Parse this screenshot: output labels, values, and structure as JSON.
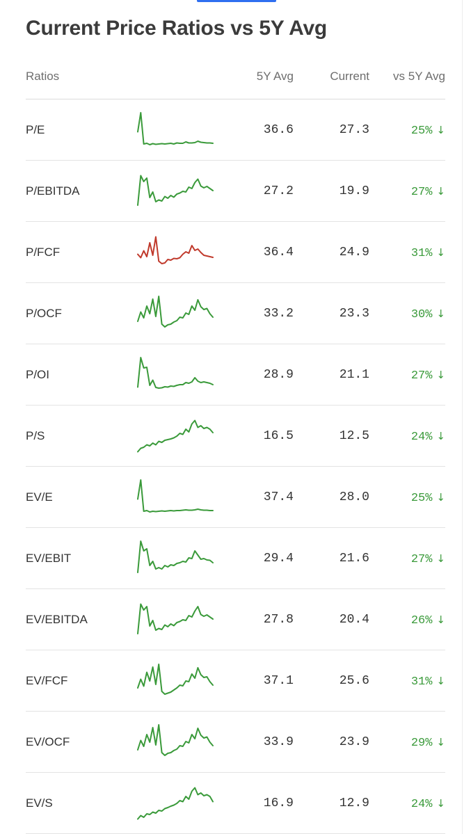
{
  "title": "Current Price Ratios vs 5Y Avg",
  "columns": {
    "ratios": "Ratios",
    "avg": "5Y Avg",
    "current": "Current",
    "vs": "vs 5Y Avg"
  },
  "colors": {
    "positive": "#3a9a3a",
    "negative": "#c0392b"
  },
  "icons": {
    "down_arrow": "↓"
  },
  "rows": [
    {
      "name": "P/E",
      "avg": "36.6",
      "current": "27.3",
      "vs": "25%",
      "spark_color": "#3a9a3a",
      "spark": [
        0.45,
        1.0,
        0.1,
        0.12,
        0.08,
        0.11,
        0.09,
        0.1,
        0.11,
        0.1,
        0.11,
        0.12,
        0.1,
        0.13,
        0.12,
        0.12,
        0.16,
        0.13,
        0.13,
        0.14,
        0.18,
        0.15,
        0.14,
        0.13,
        0.13,
        0.12
      ]
    },
    {
      "name": "P/EBITDA",
      "avg": "27.2",
      "current": "19.9",
      "vs": "27%",
      "spark_color": "#3a9a3a",
      "spark": [
        0.1,
        0.95,
        0.78,
        0.88,
        0.32,
        0.48,
        0.2,
        0.25,
        0.22,
        0.35,
        0.3,
        0.38,
        0.33,
        0.42,
        0.45,
        0.5,
        0.48,
        0.62,
        0.58,
        0.75,
        0.85,
        0.65,
        0.6,
        0.64,
        0.58,
        0.52
      ]
    },
    {
      "name": "P/FCF",
      "avg": "36.4",
      "current": "24.9",
      "vs": "31%",
      "spark_color": "#c0392b",
      "spark": [
        0.45,
        0.35,
        0.55,
        0.38,
        0.78,
        0.42,
        0.95,
        0.25,
        0.18,
        0.2,
        0.3,
        0.28,
        0.33,
        0.32,
        0.35,
        0.45,
        0.52,
        0.48,
        0.7,
        0.56,
        0.6,
        0.5,
        0.42,
        0.4,
        0.38,
        0.36
      ]
    },
    {
      "name": "P/OCF",
      "avg": "33.2",
      "current": "23.3",
      "vs": "30%",
      "spark_color": "#3a9a3a",
      "spark": [
        0.28,
        0.55,
        0.38,
        0.72,
        0.5,
        0.92,
        0.42,
        1.0,
        0.2,
        0.12,
        0.18,
        0.2,
        0.26,
        0.3,
        0.4,
        0.38,
        0.52,
        0.48,
        0.72,
        0.6,
        0.9,
        0.7,
        0.62,
        0.65,
        0.5,
        0.4
      ]
    },
    {
      "name": "P/OI",
      "avg": "28.9",
      "current": "21.1",
      "vs": "27%",
      "spark_color": "#3a9a3a",
      "spark": [
        0.15,
        1.0,
        0.7,
        0.72,
        0.2,
        0.35,
        0.14,
        0.12,
        0.13,
        0.16,
        0.15,
        0.18,
        0.17,
        0.2,
        0.22,
        0.22,
        0.28,
        0.26,
        0.3,
        0.42,
        0.32,
        0.28,
        0.3,
        0.28,
        0.26,
        0.22
      ]
    },
    {
      "name": "P/S",
      "avg": "16.5",
      "current": "12.5",
      "vs": "24%",
      "spark_color": "#3a9a3a",
      "spark": [
        0.05,
        0.15,
        0.18,
        0.25,
        0.22,
        0.3,
        0.25,
        0.35,
        0.32,
        0.38,
        0.4,
        0.42,
        0.45,
        0.5,
        0.58,
        0.55,
        0.7,
        0.62,
        0.85,
        0.95,
        0.75,
        0.8,
        0.72,
        0.75,
        0.7,
        0.6
      ]
    },
    {
      "name": "EV/E",
      "avg": "37.4",
      "current": "28.0",
      "vs": "25%",
      "spark_color": "#3a9a3a",
      "spark": [
        0.45,
        1.0,
        0.1,
        0.12,
        0.08,
        0.1,
        0.09,
        0.1,
        0.11,
        0.1,
        0.11,
        0.12,
        0.11,
        0.12,
        0.12,
        0.13,
        0.14,
        0.13,
        0.13,
        0.14,
        0.16,
        0.14,
        0.13,
        0.13,
        0.12,
        0.12
      ]
    },
    {
      "name": "EV/EBIT",
      "avg": "29.4",
      "current": "21.6",
      "vs": "27%",
      "spark_color": "#3a9a3a",
      "spark": [
        0.1,
        1.0,
        0.72,
        0.78,
        0.3,
        0.42,
        0.2,
        0.24,
        0.2,
        0.3,
        0.26,
        0.32,
        0.3,
        0.36,
        0.38,
        0.42,
        0.4,
        0.52,
        0.5,
        0.72,
        0.6,
        0.48,
        0.5,
        0.46,
        0.45,
        0.38
      ]
    },
    {
      "name": "EV/EBITDA",
      "avg": "27.8",
      "current": "20.4",
      "vs": "26%",
      "spark_color": "#3a9a3a",
      "spark": [
        0.1,
        0.95,
        0.78,
        0.88,
        0.32,
        0.48,
        0.2,
        0.25,
        0.22,
        0.35,
        0.3,
        0.38,
        0.33,
        0.42,
        0.45,
        0.5,
        0.48,
        0.62,
        0.58,
        0.75,
        0.88,
        0.65,
        0.6,
        0.64,
        0.58,
        0.52
      ]
    },
    {
      "name": "EV/FCF",
      "avg": "37.1",
      "current": "25.6",
      "vs": "31%",
      "spark_color": "#3a9a3a",
      "spark": [
        0.3,
        0.55,
        0.35,
        0.75,
        0.5,
        0.9,
        0.4,
        0.98,
        0.2,
        0.12,
        0.15,
        0.18,
        0.24,
        0.3,
        0.38,
        0.36,
        0.5,
        0.48,
        0.7,
        0.58,
        0.88,
        0.68,
        0.6,
        0.62,
        0.48,
        0.38
      ]
    },
    {
      "name": "EV/OCF",
      "avg": "33.9",
      "current": "23.9",
      "vs": "29%",
      "spark_color": "#3a9a3a",
      "spark": [
        0.28,
        0.55,
        0.38,
        0.72,
        0.5,
        0.92,
        0.42,
        1.0,
        0.2,
        0.12,
        0.18,
        0.2,
        0.26,
        0.3,
        0.4,
        0.38,
        0.52,
        0.48,
        0.72,
        0.6,
        0.9,
        0.7,
        0.62,
        0.65,
        0.5,
        0.4
      ]
    },
    {
      "name": "EV/S",
      "avg": "16.9",
      "current": "12.9",
      "vs": "24%",
      "spark_color": "#3a9a3a",
      "spark": [
        0.05,
        0.15,
        0.1,
        0.2,
        0.18,
        0.25,
        0.22,
        0.3,
        0.28,
        0.35,
        0.38,
        0.42,
        0.45,
        0.5,
        0.58,
        0.55,
        0.7,
        0.62,
        0.85,
        0.95,
        0.75,
        0.8,
        0.72,
        0.75,
        0.7,
        0.55
      ]
    }
  ]
}
